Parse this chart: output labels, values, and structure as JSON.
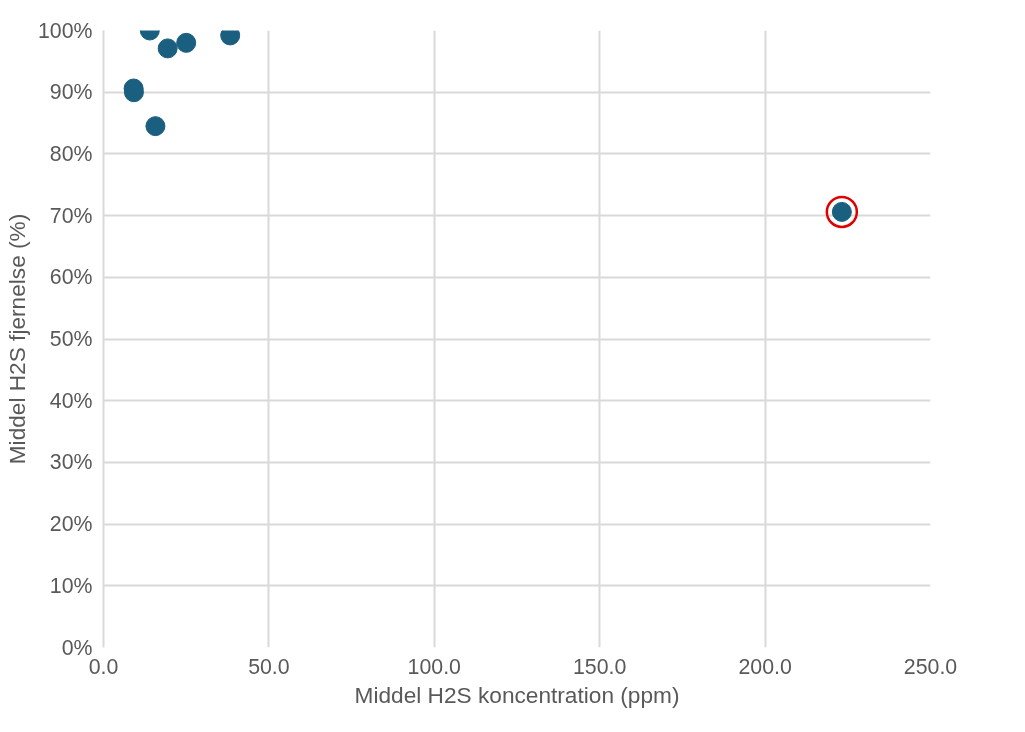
{
  "chart_data": {
    "type": "scatter",
    "xlabel": "Middel H2S koncentration (ppm)",
    "ylabel": "Middel H2S fjernelse (%)",
    "xlim": [
      0,
      250
    ],
    "xticks": [
      {
        "value": 0,
        "label": "0.0"
      },
      {
        "value": 50,
        "label": "50.0"
      },
      {
        "value": 100,
        "label": "100.0"
      },
      {
        "value": 150,
        "label": "150.0"
      },
      {
        "value": 200,
        "label": "200.0"
      },
      {
        "value": 250,
        "label": "250.0"
      }
    ],
    "ylim": [
      0,
      100
    ],
    "yticks": [
      {
        "value": 0,
        "label": "0%"
      },
      {
        "value": 10,
        "label": "10%"
      },
      {
        "value": 20,
        "label": "20%"
      },
      {
        "value": 30,
        "label": "30%"
      },
      {
        "value": 40,
        "label": "40%"
      },
      {
        "value": 50,
        "label": "50%"
      },
      {
        "value": 60,
        "label": "60%"
      },
      {
        "value": 70,
        "label": "70%"
      },
      {
        "value": 80,
        "label": "80%"
      },
      {
        "value": 90,
        "label": "90%"
      },
      {
        "value": 100,
        "label": "100%"
      }
    ],
    "grid": true,
    "marker": "circle",
    "series": [
      {
        "color": "#1a5f80",
        "x": [
          14,
          19.4,
          25,
          38.3,
          9.1,
          9.2,
          15.7,
          223.2
        ],
        "values": [
          100,
          97.1,
          98,
          99.2,
          90.6,
          90,
          84.5,
          70.6
        ]
      },
      {
        "marker": "circle",
        "color": "#e00000",
        "x": [
          223.2
        ],
        "values": [
          70.6
        ]
      }
    ]
  }
}
